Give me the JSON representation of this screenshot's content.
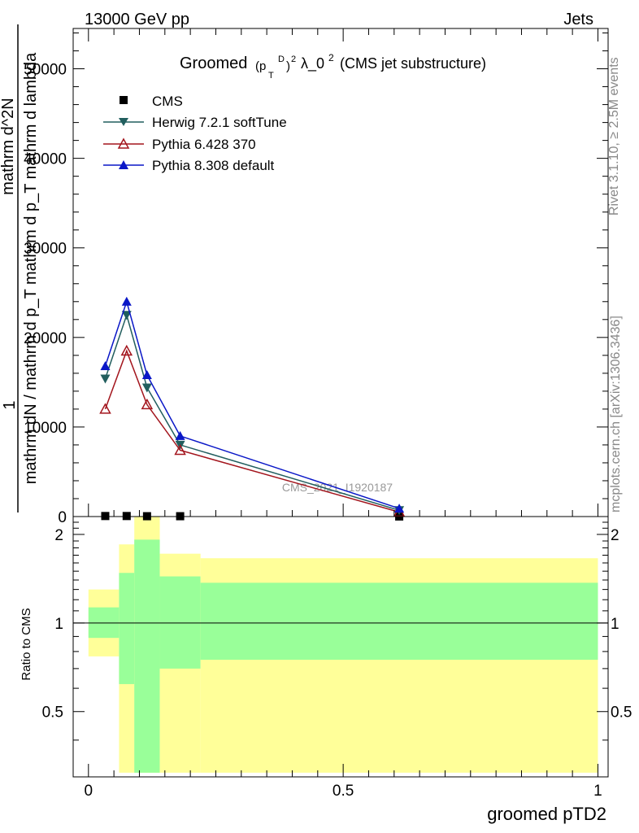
{
  "header": {
    "left": "13000 GeV pp",
    "right": "Jets"
  },
  "side": {
    "rivet": "Rivet 3.1.10, ≥ 2.5M events",
    "mcplots": "mcplots.cern.ch [arXiv:1306.3436]"
  },
  "title": {
    "prefix": "Groomed",
    "p": "(p",
    "sup_d": "D",
    "sub_t": "T",
    "close": ")",
    "sup2": "2",
    "lambda": "λ_0",
    "sup2b": "2",
    "suffix": "(CMS jet substructure)"
  },
  "watermark": "CMS_2021_I1920187",
  "colors": {
    "herwig": "#215e5e",
    "pythia6": "#a3151d",
    "pythia8": "#0a17c7",
    "band_outer": "#ffff99",
    "band_inner": "#99ff99"
  },
  "chart_data": [
    {
      "type": "line",
      "title": "Groomed (p_T^D)^2 λ_0^2 (CMS jet substructure)",
      "xlabel": "groomed pTD2",
      "ylabel_lines": [
        "1",
        "mathrm dN / mathrm d p_T mathrm d p_T mathrm d lambda",
        "mathrm d^2N"
      ],
      "xlim": [
        -0.03,
        1.02
      ],
      "ylim": [
        0,
        54500
      ],
      "x_ticks": [
        "0",
        "0.5",
        "1"
      ],
      "y_ticks": [
        "0",
        "10000",
        "20000",
        "30000",
        "40000",
        "50000"
      ],
      "y_tick_values": [
        0,
        10000,
        20000,
        30000,
        40000,
        50000
      ],
      "x_tick_values": [
        0,
        0.5,
        1
      ],
      "legend_position": "top-left",
      "legend": [
        "CMS",
        "Herwig 7.2.1 softTune",
        "Pythia 6.428 370",
        "Pythia 8.308 default"
      ],
      "x": [
        0.033,
        0.075,
        0.115,
        0.18,
        0.61
      ],
      "series": [
        {
          "name": "CMS",
          "marker": "square",
          "values": [
            60,
            60,
            40,
            40,
            10
          ]
        },
        {
          "name": "Herwig 7.2.1 softTune",
          "marker": "triangle-down",
          "values": [
            15400,
            22500,
            14400,
            8000,
            700
          ]
        },
        {
          "name": "Pythia 6.428 370",
          "marker": "triangle-up-open",
          "values": [
            12000,
            18500,
            12500,
            7400,
            500
          ]
        },
        {
          "name": "Pythia 8.308 default",
          "marker": "triangle-up",
          "values": [
            16800,
            24000,
            15800,
            9000,
            900
          ]
        }
      ]
    },
    {
      "type": "area",
      "title": "",
      "xlabel": "groomed pTD2",
      "ylabel": "Ratio to CMS",
      "xlim": [
        -0.03,
        1.02
      ],
      "ylim": [
        0.3,
        2.3
      ],
      "y_ticks": [
        "0.5",
        "1",
        "2"
      ],
      "y_tick_values": [
        0.5,
        1,
        2
      ],
      "reference_line": 1,
      "bins": [
        {
          "x_low": 0.0,
          "x_high": 0.06,
          "inner_low": 0.89,
          "inner_high": 1.13,
          "outer_low": 0.77,
          "outer_high": 1.3
        },
        {
          "x_low": 0.06,
          "x_high": 0.09,
          "inner_low": 0.62,
          "inner_high": 1.48,
          "outer_low": 0.31,
          "outer_high": 1.85
        },
        {
          "x_low": 0.09,
          "x_high": 0.14,
          "inner_low": 0.31,
          "inner_high": 1.92,
          "outer_low": 0.31,
          "outer_high": 2.31
        },
        {
          "x_low": 0.14,
          "x_high": 0.22,
          "inner_low": 0.7,
          "inner_high": 1.44,
          "outer_low": 0.31,
          "outer_high": 1.72
        },
        {
          "x_low": 0.22,
          "x_high": 1.0,
          "inner_low": 0.75,
          "inner_high": 1.37,
          "outer_low": 0.31,
          "outer_high": 1.66
        }
      ]
    }
  ]
}
